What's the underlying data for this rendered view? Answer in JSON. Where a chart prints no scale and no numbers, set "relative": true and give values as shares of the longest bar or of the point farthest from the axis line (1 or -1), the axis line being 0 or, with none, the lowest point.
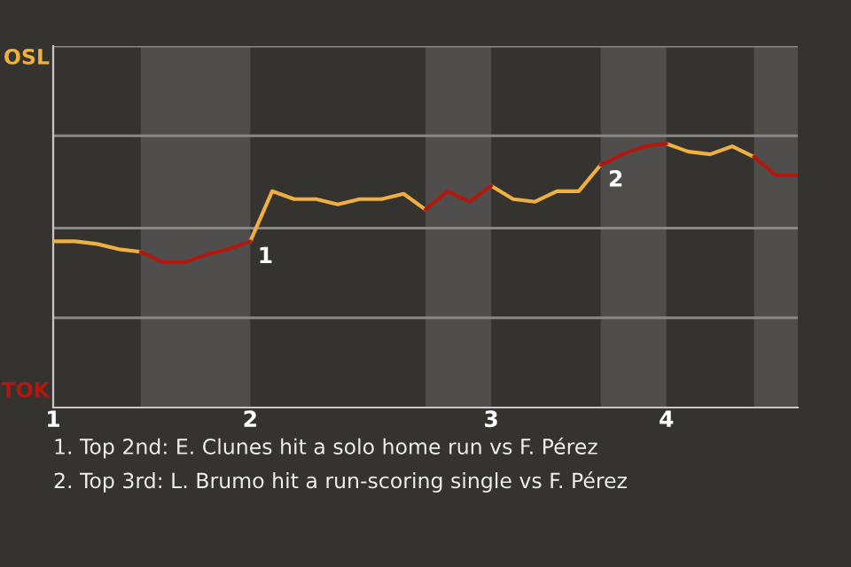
{
  "chart_data": {
    "type": "line",
    "relative": true,
    "categories": [
      "1",
      null,
      null,
      null,
      null,
      null,
      null,
      null,
      null,
      "2",
      null,
      null,
      null,
      null,
      null,
      null,
      null,
      null,
      null,
      null,
      "3",
      null,
      null,
      null,
      null,
      null,
      null,
      null,
      "4",
      null,
      null,
      null,
      null,
      null,
      null
    ],
    "series": [
      {
        "color": "#f0b040",
        "values": [
          0.63,
          0.63,
          0.62,
          0.6,
          0.59,
          null,
          null,
          null,
          null,
          0.63,
          0.82,
          0.79,
          0.79,
          0.77,
          0.79,
          0.79,
          0.81,
          0.75,
          null,
          null,
          0.84,
          0.79,
          0.78,
          0.82,
          0.82,
          0.92,
          null,
          null,
          1,
          0.97,
          0.96,
          0.99,
          0.95,
          null,
          null
        ]
      },
      {
        "color": "#b01810",
        "values": [
          null,
          null,
          null,
          null,
          0.59,
          0.55,
          0.55,
          0.58,
          0.6,
          0.63,
          null,
          null,
          null,
          null,
          null,
          null,
          null,
          0.75,
          0.82,
          0.78,
          0.84,
          null,
          null,
          null,
          null,
          0.92,
          0.96,
          0.99,
          1,
          null,
          null,
          null,
          0.95,
          0.88,
          0.88
        ]
      }
    ],
    "ref_lines": [
      {
        "axis": "y",
        "value": 0.34,
        "color": "#8a8886"
      },
      {
        "axis": "y",
        "value": 0.68,
        "color": "#8a8886"
      },
      {
        "axis": "y",
        "value": 1.03,
        "color": "#8a8886"
      },
      {
        "axis": "y",
        "value": 1.37,
        "color": "#8a8886"
      }
    ],
    "annotations": [
      {
        "text": "1",
        "x": "2",
        "y": 0.63
      },
      {
        "text": "2",
        "y": 0.92
      },
      "OSL",
      "TOK",
      "1. Top 2nd: E. Clunes hit a solo home run vs F. Pérez",
      "2. Top 3rd: L. Brumo hit a run-scoring single vs F. Pérez"
    ]
  }
}
